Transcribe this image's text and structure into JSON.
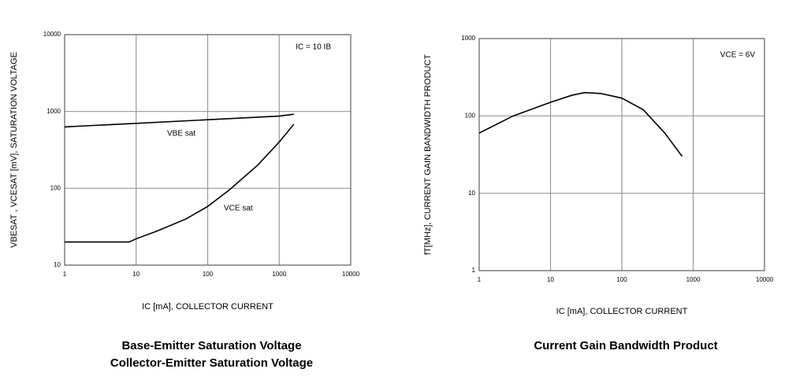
{
  "chart_data": [
    {
      "type": "line",
      "log_x": true,
      "log_y": true,
      "grid": true,
      "title": [
        "Base-Emitter Saturation Voltage",
        "Collector-Emitter Saturation Voltage"
      ],
      "x_label": "IC [mA], COLLECTOR CURRENT",
      "y_label": "VBESAT , VCESAT  [mV], SATURATION VOLTAGE",
      "xlim": [
        1,
        10000
      ],
      "xticks": [
        1,
        10,
        100,
        1000,
        10000
      ],
      "ylim": [
        10,
        10000
      ],
      "yticks": [
        10,
        100,
        1000,
        10000
      ],
      "annotations": [
        "IC = 10 IB",
        "VBE sat",
        "VCE sat"
      ],
      "series": [
        {
          "color": "#000000",
          "x": [
            1,
            10,
            100,
            1000,
            1600
          ],
          "values": [
            630,
            700,
            780,
            870,
            920
          ]
        },
        {
          "color": "#000000",
          "x": [
            1,
            8,
            10,
            20,
            50,
            100,
            200,
            500,
            1000,
            1600
          ],
          "values": [
            20,
            20,
            22,
            28,
            40,
            58,
            95,
            200,
            400,
            680
          ]
        }
      ]
    },
    {
      "type": "line",
      "log_x": true,
      "log_y": true,
      "grid": true,
      "title": [
        "Current Gain Bandwidth Product"
      ],
      "x_label": "IC [mA], COLLECTOR CURRENT",
      "y_label": "fT[MHz], CURRENT GAIN BANDWIDTH PRODUCT",
      "xlim": [
        1,
        10000
      ],
      "xticks": [
        1,
        10,
        100,
        1000,
        10000
      ],
      "ylim": [
        1,
        1000
      ],
      "yticks": [
        1,
        10,
        100,
        1000
      ],
      "annotations": [
        "VCE = 6V"
      ],
      "series": [
        {
          "color": "#000000",
          "x": [
            1,
            3,
            10,
            20,
            30,
            50,
            100,
            200,
            400,
            700
          ],
          "values": [
            60,
            100,
            150,
            185,
            200,
            195,
            170,
            120,
            60,
            30
          ]
        }
      ]
    }
  ]
}
